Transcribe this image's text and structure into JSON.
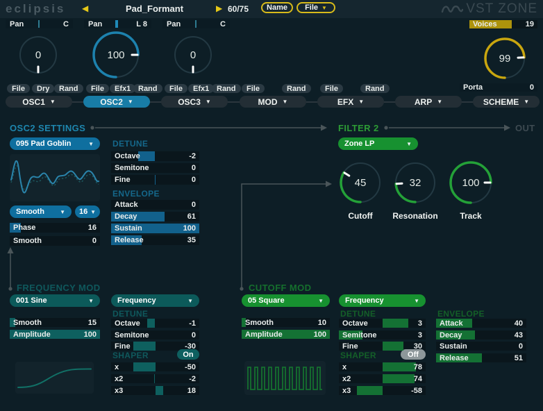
{
  "icons": {
    "caret": "▼",
    "prev": "◀",
    "next": "▶"
  },
  "titlebar": {
    "logo": "eclipsis",
    "preset": "Pad_Formant",
    "counter": "60/75",
    "name_button": "Name",
    "file_button": "File",
    "brand": "VST ZONE"
  },
  "pan_row": [
    {
      "label": "Pan",
      "value": "C",
      "tick": 48
    },
    {
      "label": "Pan",
      "value": "L 8",
      "tick": 46
    },
    {
      "label": "Pan",
      "value": "C",
      "tick": 48
    }
  ],
  "voices": {
    "label": "Voices",
    "value": 19,
    "fill": [
      0,
      62
    ]
  },
  "porta": {
    "label": "Porta",
    "value": 0,
    "fill": [
      0,
      0
    ]
  },
  "knobs": {
    "osc1": {
      "value": 0,
      "color": "#1d82ae"
    },
    "osc2": {
      "value": 100,
      "color": "#1d82ae"
    },
    "osc3": {
      "value": 0,
      "color": "#1d82ae"
    },
    "main": {
      "value": 99,
      "color": "#c9a60f"
    }
  },
  "mode_buttons": {
    "osc1": [
      "File",
      "Dry",
      "Rand"
    ],
    "osc2": [
      "File",
      "Efx1",
      "Rand"
    ],
    "osc3": [
      "File",
      "Efx1",
      "Rand"
    ],
    "mod": [
      "File",
      "Rand"
    ],
    "efx": [
      "File",
      "Rand"
    ]
  },
  "tabs": [
    "OSC1",
    "OSC2",
    "OSC3",
    "MOD",
    "EFX",
    "ARP",
    "SCHEME"
  ],
  "headers": {
    "osc2_settings": "OSC2 SETTINGS",
    "filter2": "FILTER 2",
    "out": "OUT",
    "frequency_mod": "FREQUENCY MOD",
    "cutoff_mod": "CUTOFF MOD"
  },
  "osc2": {
    "preset": "095 Pad Goblin",
    "interp": "Smooth",
    "steps": "16",
    "phase": {
      "label": "Phase",
      "value": 16,
      "fill": [
        0,
        12.5
      ]
    },
    "smooth": {
      "label": "Smooth",
      "value": 0,
      "fill": [
        0,
        0
      ]
    },
    "detune_header": "DETUNE",
    "detune": {
      "octave": {
        "label": "Octave",
        "value": -2,
        "fill": [
          31,
          50
        ]
      },
      "semitone": {
        "label": "Semitone",
        "value": 0,
        "fill": [
          0,
          0
        ]
      },
      "fine": {
        "label": "Fine",
        "value": 0,
        "fill": [
          49.5,
          50.6
        ]
      }
    },
    "envelope_header": "ENVELOPE",
    "envelope": {
      "attack": {
        "label": "Attack",
        "value": 0,
        "fill": [
          0,
          0
        ]
      },
      "decay": {
        "label": "Decay",
        "value": 61,
        "fill": [
          0,
          61
        ]
      },
      "sustain": {
        "label": "Sustain",
        "value": 100,
        "fill": [
          0,
          100
        ]
      },
      "release": {
        "label": "Release",
        "value": 35,
        "fill": [
          0,
          35
        ]
      }
    }
  },
  "filter2": {
    "mode": "Zone LP",
    "knobs": {
      "cutoff": {
        "label": "Cutoff",
        "value": 45,
        "color": "#24a138"
      },
      "resonation": {
        "label": "Resonation",
        "value": 32,
        "color": "#24a138"
      },
      "track": {
        "label": "Track",
        "value": 100,
        "color": "#24a138"
      }
    }
  },
  "freq_mod": {
    "wave": "001 Sine",
    "target": "Frequency",
    "smooth": {
      "label": "Smooth",
      "value": 15,
      "fill": [
        0,
        6
      ]
    },
    "amplitude": {
      "label": "Amplitude",
      "value": 100,
      "fill": [
        0,
        100
      ]
    },
    "detune_header": "DETUNE",
    "detune": {
      "octave": {
        "label": "Octave",
        "value": -1,
        "fill": [
          41,
          50
        ]
      },
      "semitone": {
        "label": "Semitone",
        "value": 0,
        "fill": [
          0,
          0
        ]
      },
      "fine": {
        "label": "Fine",
        "value": -30,
        "fill": [
          25,
          50
        ]
      }
    },
    "shaper_header": "SHAPER",
    "shaper_state": "On",
    "shaper": {
      "x": {
        "label": "x",
        "value": -50,
        "fill": [
          25,
          50
        ]
      },
      "x2": {
        "label": "x2",
        "value": -2,
        "fill": [
          48.8,
          50
        ]
      },
      "x3": {
        "label": "x3",
        "value": 18,
        "fill": [
          50,
          59
        ]
      }
    }
  },
  "cutoff_mod": {
    "wave": "05 Square",
    "target": "Frequency",
    "smooth": {
      "label": "Smooth",
      "value": 10,
      "fill": [
        0,
        5
      ]
    },
    "amplitude": {
      "label": "Amplitude",
      "value": 100,
      "fill": [
        0,
        100
      ]
    },
    "detune_header": "DETUNE",
    "detune": {
      "octave": {
        "label": "Octave",
        "value": 3,
        "fill": [
          50,
          80
        ]
      },
      "semitone": {
        "label": "Semitone",
        "value": 3,
        "fill": [
          0,
          27
        ]
      },
      "fine": {
        "label": "Fine",
        "value": 30,
        "fill": [
          50,
          74
        ]
      }
    },
    "shaper_header": "SHAPER",
    "shaper_state": "Off",
    "shaper": {
      "x": {
        "label": "x",
        "value": 78,
        "fill": [
          50,
          89
        ]
      },
      "x2": {
        "label": "x2",
        "value": 74,
        "fill": [
          50,
          87
        ]
      },
      "x3": {
        "label": "x3",
        "value": -58,
        "fill": [
          21,
          50
        ]
      }
    },
    "envelope_header": "ENVELOPE",
    "envelope": {
      "attack": {
        "label": "Attack",
        "value": 40,
        "fill": [
          0,
          40
        ]
      },
      "decay": {
        "label": "Decay",
        "value": 43,
        "fill": [
          0,
          43
        ]
      },
      "sustain": {
        "label": "Sustain",
        "value": 0,
        "fill": [
          0,
          0
        ]
      },
      "release": {
        "label": "Release",
        "value": 51,
        "fill": [
          0,
          51
        ]
      }
    }
  },
  "colors": {
    "blue": "#1d82ae",
    "teal": "#0e605f",
    "green": "#24a138",
    "yellow": "#d8bb1a"
  }
}
